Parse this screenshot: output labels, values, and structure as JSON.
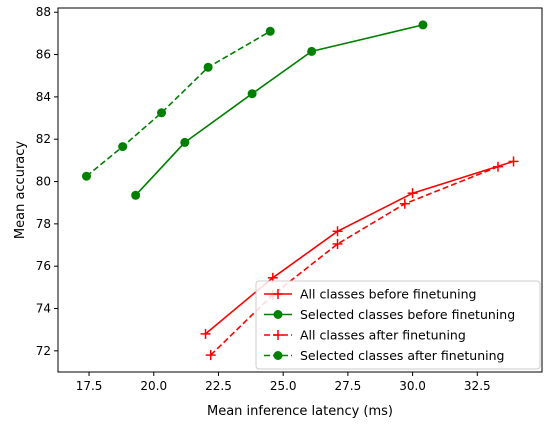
{
  "chart_data": {
    "type": "line",
    "title": "",
    "xlabel": "Mean inference latency (ms)",
    "ylabel": "Mean accuracy",
    "xlim": [
      16.3,
      35.0
    ],
    "ylim": [
      71.0,
      88.2
    ],
    "x_ticks": [
      17.5,
      20.0,
      22.5,
      25.0,
      27.5,
      30.0,
      32.5
    ],
    "x_tick_labels": [
      "17.5",
      "20.0",
      "22.5",
      "25.0",
      "27.5",
      "30.0",
      "32.5"
    ],
    "y_ticks": [
      72,
      74,
      76,
      78,
      80,
      82,
      84,
      86,
      88
    ],
    "y_tick_labels": [
      "72",
      "74",
      "76",
      "78",
      "80",
      "82",
      "84",
      "86",
      "88"
    ],
    "grid": false,
    "legend": {
      "location": "lower-right"
    },
    "series": [
      {
        "name": "All classes before finetuning",
        "color": "#ff0000",
        "linestyle": "solid",
        "marker": "plus",
        "x": [
          22.0,
          24.6,
          27.1,
          30.0,
          33.9
        ],
        "y": [
          72.8,
          75.45,
          77.65,
          79.45,
          80.95
        ]
      },
      {
        "name": "Selected classes before finetuning",
        "color": "#008000",
        "linestyle": "solid",
        "marker": "circle",
        "x": [
          19.3,
          21.2,
          23.8,
          26.1,
          30.4
        ],
        "y": [
          79.35,
          81.85,
          84.15,
          86.15,
          87.4
        ]
      },
      {
        "name": "All classes after finetuning",
        "color": "#ff0000",
        "linestyle": "dashed",
        "marker": "plus",
        "x": [
          22.2,
          24.6,
          27.1,
          29.7,
          33.3
        ],
        "y": [
          71.8,
          74.65,
          77.05,
          78.95,
          80.7
        ]
      },
      {
        "name": "Selected classes after finetuning",
        "color": "#008000",
        "linestyle": "dashed",
        "marker": "circle",
        "x": [
          17.4,
          18.8,
          20.3,
          22.1,
          24.5
        ],
        "y": [
          80.25,
          81.65,
          83.25,
          85.4,
          87.1
        ]
      }
    ]
  }
}
